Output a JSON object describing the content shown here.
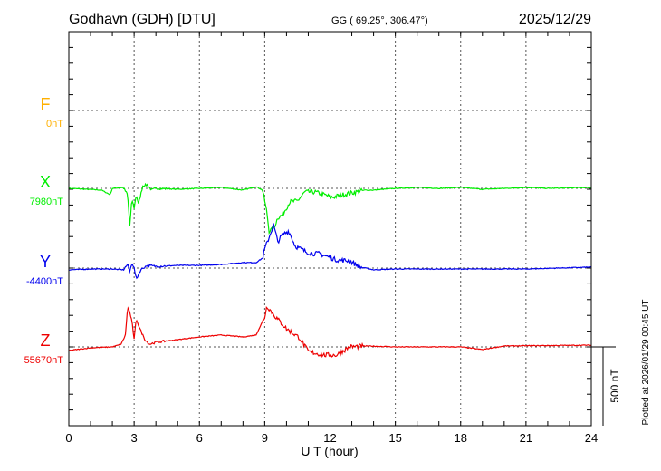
{
  "header": {
    "station": "Godhavn (GDH)  [DTU]",
    "coords": "GG ( 69.25°, 306.47°)",
    "date": "2025/12/29"
  },
  "footer": {
    "plotted": "Plotted at 2026/01/29 00:45 UT"
  },
  "chart_data": {
    "type": "line",
    "title": "Godhavn (GDH)  [DTU]",
    "xlabel": "U T (hour)",
    "xlim": [
      0,
      24
    ],
    "xticks": [
      "0",
      "3",
      "6",
      "9",
      "12",
      "15",
      "18",
      "21",
      "24"
    ],
    "scale_bar": "500 nT",
    "grid": true,
    "series": [
      {
        "name": "F",
        "baseline_label": "0nT",
        "color": "#ffb000",
        "points": []
      },
      {
        "name": "X",
        "baseline_label": "7980nT",
        "color": "#00ee00",
        "points": [
          [
            0,
            0
          ],
          [
            1.5,
            -11
          ],
          [
            1.9,
            -40
          ],
          [
            2.0,
            0
          ],
          [
            2.5,
            6
          ],
          [
            2.7,
            -40
          ],
          [
            2.8,
            -240
          ],
          [
            2.9,
            -70
          ],
          [
            3.0,
            -125
          ],
          [
            3.1,
            -40
          ],
          [
            3.2,
            -100
          ],
          [
            3.4,
            17
          ],
          [
            3.6,
            23
          ],
          [
            3.8,
            -11
          ],
          [
            4,
            0
          ],
          [
            5,
            -6
          ],
          [
            6,
            0
          ],
          [
            7,
            6
          ],
          [
            8,
            -11
          ],
          [
            8.6,
            11
          ],
          [
            8.9,
            -11
          ],
          [
            9.0,
            -80
          ],
          [
            9.1,
            -155
          ],
          [
            9.2,
            -270
          ],
          [
            9.4,
            -260
          ],
          [
            9.6,
            -185
          ],
          [
            9.8,
            -170
          ],
          [
            10.15,
            -86
          ],
          [
            10.5,
            -80
          ],
          [
            10.85,
            -23
          ],
          [
            11.3,
            -23
          ],
          [
            11.6,
            -35
          ],
          [
            12.1,
            -57
          ],
          [
            12.6,
            -40
          ],
          [
            13,
            -29
          ],
          [
            13.6,
            -11
          ],
          [
            14,
            -11
          ],
          [
            15,
            0
          ],
          [
            16,
            6
          ],
          [
            17,
            0
          ],
          [
            18,
            6
          ],
          [
            19,
            -6
          ],
          [
            20,
            0
          ],
          [
            21,
            6
          ],
          [
            22,
            0
          ],
          [
            24,
            6
          ]
        ]
      },
      {
        "name": "Y",
        "baseline_label": "-4400nT",
        "color": "#0000ee",
        "points": [
          [
            0,
            -11
          ],
          [
            1,
            -6
          ],
          [
            2,
            -6
          ],
          [
            2.5,
            -11
          ],
          [
            2.7,
            23
          ],
          [
            2.8,
            -23
          ],
          [
            2.9,
            35
          ],
          [
            3.0,
            0
          ],
          [
            3.1,
            -70
          ],
          [
            3.3,
            -11
          ],
          [
            3.6,
            17
          ],
          [
            4,
            11
          ],
          [
            5,
            17
          ],
          [
            6,
            17
          ],
          [
            7,
            23
          ],
          [
            8,
            35
          ],
          [
            8.6,
            35
          ],
          [
            8.9,
            63
          ],
          [
            9.0,
            120
          ],
          [
            9.2,
            195
          ],
          [
            9.4,
            276
          ],
          [
            9.6,
            167
          ],
          [
            9.8,
            210
          ],
          [
            10.1,
            236
          ],
          [
            10.4,
            140
          ],
          [
            10.9,
            103
          ],
          [
            11.2,
            92
          ],
          [
            11.5,
            92
          ],
          [
            12.3,
            52
          ],
          [
            12.9,
            46
          ],
          [
            13.4,
            6
          ],
          [
            14,
            -11
          ],
          [
            15,
            -6
          ],
          [
            18,
            -6
          ],
          [
            21,
            -6
          ],
          [
            24,
            6
          ]
        ]
      },
      {
        "name": "Z",
        "baseline_label": "55670nT",
        "color": "#ee0000",
        "points": [
          [
            0,
            -23
          ],
          [
            1,
            -6
          ],
          [
            2,
            0
          ],
          [
            2.4,
            17
          ],
          [
            2.6,
            75
          ],
          [
            2.7,
            250
          ],
          [
            2.8,
            220
          ],
          [
            2.9,
            160
          ],
          [
            3.0,
            46
          ],
          [
            3.1,
            178
          ],
          [
            3.3,
            103
          ],
          [
            3.5,
            46
          ],
          [
            3.7,
            17
          ],
          [
            4,
            29
          ],
          [
            5,
            46
          ],
          [
            6,
            63
          ],
          [
            7,
            75
          ],
          [
            8,
            63
          ],
          [
            8.6,
            75
          ],
          [
            9.0,
            190
          ],
          [
            9.1,
            260
          ],
          [
            9.5,
            190
          ],
          [
            10.0,
            115
          ],
          [
            10.6,
            57
          ],
          [
            11.0,
            -29
          ],
          [
            11.7,
            -52
          ],
          [
            12.3,
            -52
          ],
          [
            12.9,
            0
          ],
          [
            13.7,
            6
          ],
          [
            15,
            0
          ],
          [
            18,
            0
          ],
          [
            19,
            -17
          ],
          [
            20,
            6
          ],
          [
            24,
            11
          ]
        ]
      }
    ]
  }
}
